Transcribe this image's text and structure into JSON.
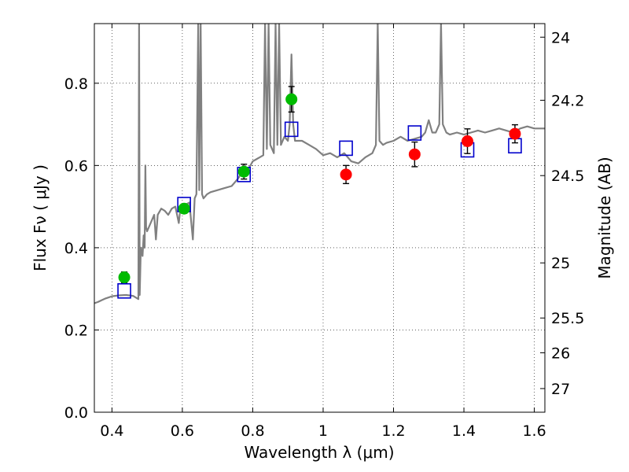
{
  "chart_data": {
    "type": "scatter",
    "title": "",
    "xlabel": "Wavelength  λ (μm)",
    "ylabel": "Flux  Fν  ( μJy )",
    "y2label": "Magnitude (AB)",
    "xlim": [
      0.35,
      1.63
    ],
    "ylim": [
      0.0,
      0.945
    ],
    "grid": true,
    "grid_style": "dotted",
    "x_ticks": [
      0.4,
      0.6,
      0.8,
      1.0,
      1.2,
      1.4,
      1.6
    ],
    "x_tick_labels": [
      "0.4",
      "0.6",
      "0.8",
      "1",
      "1.2",
      "1.4",
      "1.6"
    ],
    "y_ticks": [
      0.0,
      0.2,
      0.4,
      0.6,
      0.8
    ],
    "y_tick_labels": [
      "0.0",
      "0.2",
      "0.4",
      "0.6",
      "0.8"
    ],
    "y2_ticks": [
      {
        "label": "24",
        "flux": 0.912
      },
      {
        "label": "24.2",
        "flux": 0.7586
      },
      {
        "label": "24.5",
        "flux": 0.5754
      },
      {
        "label": "25",
        "flux": 0.3631
      },
      {
        "label": "25.5",
        "flux": 0.2291
      },
      {
        "label": "26",
        "flux": 0.1445
      },
      {
        "label": "27",
        "flux": 0.0575
      }
    ],
    "series": [
      {
        "kind": "spectrum",
        "color": "#808080",
        "points": [
          [
            0.35,
            0.265
          ],
          [
            0.36,
            0.268
          ],
          [
            0.37,
            0.272
          ],
          [
            0.38,
            0.276
          ],
          [
            0.39,
            0.279
          ],
          [
            0.4,
            0.282
          ],
          [
            0.42,
            0.284
          ],
          [
            0.44,
            0.285
          ],
          [
            0.46,
            0.283
          ],
          [
            0.475,
            0.275
          ],
          [
            0.477,
            0.945
          ],
          [
            0.479,
            0.285
          ],
          [
            0.482,
            0.4
          ],
          [
            0.487,
            0.38
          ],
          [
            0.49,
            0.43
          ],
          [
            0.493,
            0.4
          ],
          [
            0.495,
            0.6
          ],
          [
            0.497,
            0.45
          ],
          [
            0.5,
            0.44
          ],
          [
            0.51,
            0.46
          ],
          [
            0.52,
            0.48
          ],
          [
            0.525,
            0.42
          ],
          [
            0.53,
            0.48
          ],
          [
            0.54,
            0.495
          ],
          [
            0.55,
            0.49
          ],
          [
            0.56,
            0.48
          ],
          [
            0.57,
            0.495
          ],
          [
            0.58,
            0.5
          ],
          [
            0.59,
            0.46
          ],
          [
            0.595,
            0.5
          ],
          [
            0.6,
            0.495
          ],
          [
            0.61,
            0.505
          ],
          [
            0.62,
            0.51
          ],
          [
            0.63,
            0.42
          ],
          [
            0.635,
            0.52
          ],
          [
            0.64,
            0.53
          ],
          [
            0.645,
            0.945
          ],
          [
            0.648,
            0.54
          ],
          [
            0.652,
            0.945
          ],
          [
            0.656,
            0.53
          ],
          [
            0.66,
            0.52
          ],
          [
            0.67,
            0.53
          ],
          [
            0.68,
            0.535
          ],
          [
            0.7,
            0.54
          ],
          [
            0.72,
            0.545
          ],
          [
            0.74,
            0.55
          ],
          [
            0.75,
            0.56
          ],
          [
            0.76,
            0.57
          ],
          [
            0.77,
            0.585
          ],
          [
            0.78,
            0.59
          ],
          [
            0.79,
            0.595
          ],
          [
            0.8,
            0.61
          ],
          [
            0.81,
            0.615
          ],
          [
            0.82,
            0.62
          ],
          [
            0.83,
            0.625
          ],
          [
            0.835,
            0.945
          ],
          [
            0.84,
            0.64
          ],
          [
            0.845,
            0.945
          ],
          [
            0.85,
            0.65
          ],
          [
            0.86,
            0.63
          ],
          [
            0.865,
            0.945
          ],
          [
            0.87,
            0.65
          ],
          [
            0.875,
            0.945
          ],
          [
            0.88,
            0.65
          ],
          [
            0.885,
            0.66
          ],
          [
            0.89,
            0.67
          ],
          [
            0.9,
            0.66
          ],
          [
            0.905,
            0.7
          ],
          [
            0.91,
            0.87
          ],
          [
            0.915,
            0.7
          ],
          [
            0.92,
            0.66
          ],
          [
            0.94,
            0.66
          ],
          [
            0.96,
            0.65
          ],
          [
            0.98,
            0.64
          ],
          [
            1.0,
            0.625
          ],
          [
            1.02,
            0.63
          ],
          [
            1.04,
            0.62
          ],
          [
            1.06,
            0.63
          ],
          [
            1.08,
            0.61
          ],
          [
            1.1,
            0.605
          ],
          [
            1.12,
            0.62
          ],
          [
            1.14,
            0.63
          ],
          [
            1.15,
            0.65
          ],
          [
            1.155,
            0.945
          ],
          [
            1.16,
            0.66
          ],
          [
            1.17,
            0.65
          ],
          [
            1.18,
            0.655
          ],
          [
            1.2,
            0.66
          ],
          [
            1.22,
            0.67
          ],
          [
            1.24,
            0.66
          ],
          [
            1.26,
            0.665
          ],
          [
            1.28,
            0.67
          ],
          [
            1.29,
            0.68
          ],
          [
            1.3,
            0.71
          ],
          [
            1.31,
            0.68
          ],
          [
            1.32,
            0.68
          ],
          [
            1.33,
            0.7
          ],
          [
            1.335,
            0.945
          ],
          [
            1.34,
            0.7
          ],
          [
            1.35,
            0.68
          ],
          [
            1.36,
            0.675
          ],
          [
            1.38,
            0.68
          ],
          [
            1.4,
            0.675
          ],
          [
            1.42,
            0.68
          ],
          [
            1.44,
            0.685
          ],
          [
            1.46,
            0.68
          ],
          [
            1.48,
            0.685
          ],
          [
            1.5,
            0.69
          ],
          [
            1.52,
            0.685
          ],
          [
            1.54,
            0.68
          ],
          [
            1.56,
            0.69
          ],
          [
            1.58,
            0.695
          ],
          [
            1.6,
            0.69
          ],
          [
            1.62,
            0.69
          ],
          [
            1.63,
            0.69
          ]
        ]
      },
      {
        "kind": "points",
        "marker": "circle",
        "color": "#00bb00",
        "points": [
          {
            "x": 0.435,
            "y": 0.328,
            "err": 0.013
          },
          {
            "x": 0.605,
            "y": 0.495,
            "err": 0.011
          },
          {
            "x": 0.775,
            "y": 0.585,
            "err": 0.018
          },
          {
            "x": 0.91,
            "y": 0.761,
            "err": 0.031
          }
        ]
      },
      {
        "kind": "points",
        "marker": "circle",
        "color": "#ff0000",
        "points": [
          {
            "x": 1.065,
            "y": 0.578,
            "err": 0.022
          },
          {
            "x": 1.26,
            "y": 0.627,
            "err": 0.03
          },
          {
            "x": 1.41,
            "y": 0.659,
            "err": 0.03
          },
          {
            "x": 1.545,
            "y": 0.677,
            "err": 0.022
          }
        ]
      },
      {
        "kind": "points",
        "marker": "open-square",
        "color": "#0000cc",
        "points": [
          {
            "x": 0.435,
            "y": 0.295
          },
          {
            "x": 0.605,
            "y": 0.505
          },
          {
            "x": 0.775,
            "y": 0.578
          },
          {
            "x": 0.91,
            "y": 0.688
          },
          {
            "x": 1.065,
            "y": 0.642
          },
          {
            "x": 1.26,
            "y": 0.679
          },
          {
            "x": 1.41,
            "y": 0.638
          },
          {
            "x": 1.545,
            "y": 0.648
          }
        ]
      }
    ]
  }
}
